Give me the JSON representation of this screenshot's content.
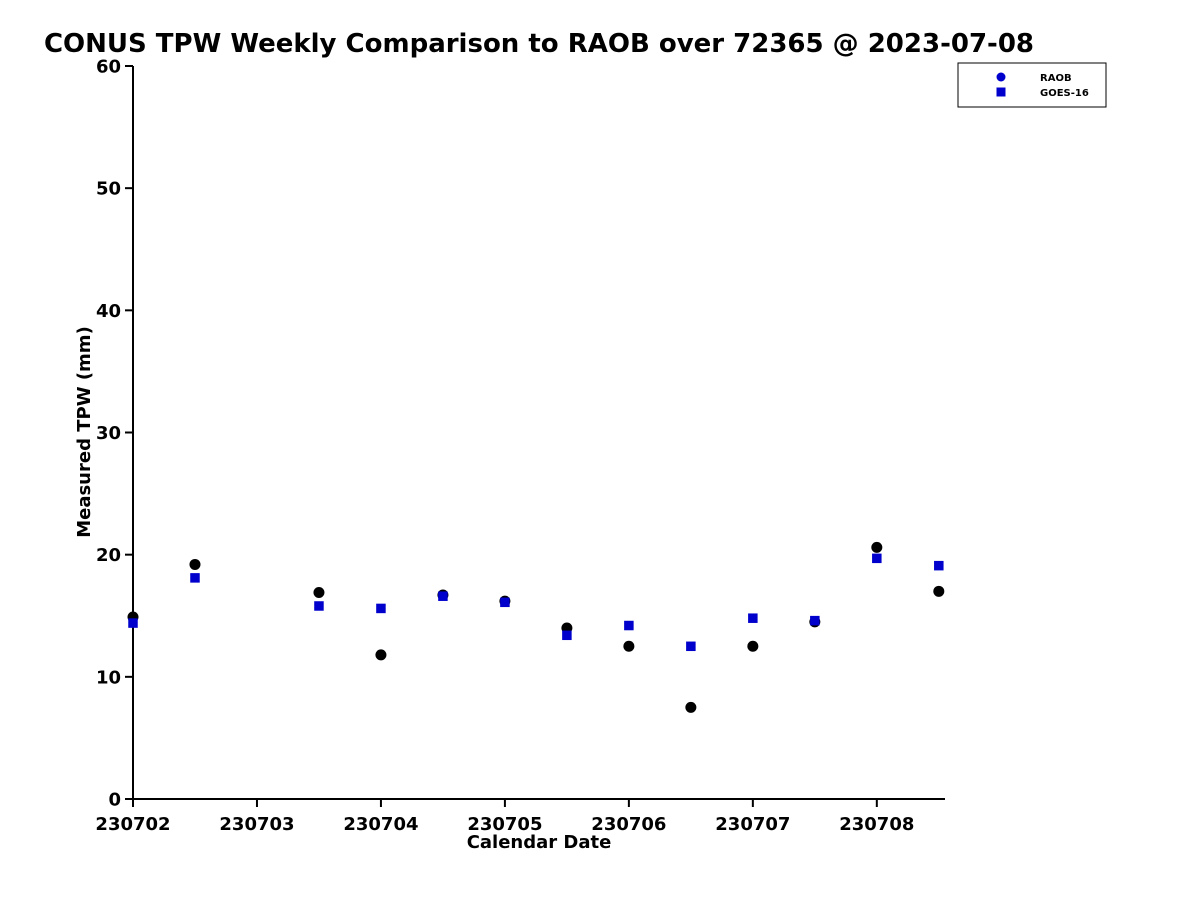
{
  "figure": {
    "background": "#ffffff",
    "accent_blue": "#0000cd",
    "marker_black": "#000000"
  },
  "chart_data": {
    "type": "scatter",
    "title": "CONUS TPW Weekly Comparison to RAOB over 72365 @ 2023-07-08",
    "xlabel": "Calendar Date",
    "ylabel": "Measured TPW (mm)",
    "xlim": [
      230702,
      230708.55
    ],
    "ylim": [
      0,
      60
    ],
    "grid": false,
    "legend_position": "upper-right-outside",
    "x_ticks": [
      230702,
      230703,
      230704,
      230705,
      230706,
      230707,
      230708
    ],
    "x_tick_labels": [
      "230702",
      "230703",
      "230704",
      "230705",
      "230706",
      "230707",
      "230708"
    ],
    "y_ticks": [
      0,
      10,
      20,
      30,
      40,
      50,
      60
    ],
    "y_tick_labels": [
      "0",
      "10",
      "20",
      "30",
      "40",
      "50",
      "60"
    ],
    "x": [
      230702.0,
      230702.5,
      230703.5,
      230704.0,
      230704.5,
      230705.0,
      230705.5,
      230706.0,
      230706.5,
      230707.0,
      230707.5,
      230708.0,
      230708.5
    ],
    "series": [
      {
        "name": "RAOB",
        "marker": "circle",
        "color": "#000000",
        "legend_marker_color": "#0000cd",
        "values": [
          14.9,
          19.2,
          16.9,
          11.8,
          16.7,
          16.2,
          14.0,
          12.5,
          7.5,
          12.5,
          14.5,
          20.6,
          17.0
        ]
      },
      {
        "name": "GOES-16",
        "marker": "square",
        "color": "#0000cd",
        "legend_marker_color": "#0000cd",
        "values": [
          14.4,
          18.1,
          15.8,
          15.6,
          16.6,
          16.1,
          13.4,
          14.2,
          12.5,
          14.8,
          14.6,
          19.7,
          19.1
        ]
      }
    ]
  }
}
